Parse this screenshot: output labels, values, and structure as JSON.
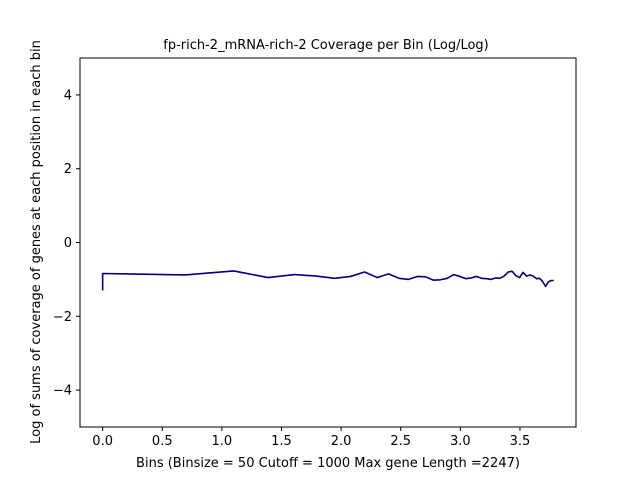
{
  "chart_data": {
    "type": "line",
    "title": "fp-rich-2_mRNA-rich-2 Coverage per Bin (Log/Log)",
    "xlabel": "Bins  (Binsize = 50 Cutoff = 1000 Max gene Length =2247)",
    "ylabel": "Log of sums of coverage of genes at each position in each bin",
    "xlim": [
      -0.19,
      3.97
    ],
    "ylim": [
      -5,
      5
    ],
    "xticks": [
      0.0,
      0.5,
      1.0,
      1.5,
      2.0,
      2.5,
      3.0,
      3.5
    ],
    "xtick_labels": [
      "0.0",
      "0.5",
      "1.0",
      "1.5",
      "2.0",
      "2.5",
      "3.0",
      "3.5"
    ],
    "yticks": [
      -4,
      -2,
      0,
      2,
      4
    ],
    "ytick_labels": [
      "−4",
      "−2",
      "0",
      "2",
      "4"
    ],
    "grid": false,
    "line_color": "#000080",
    "series": [
      {
        "x": [
          0.0,
          0.0,
          0.693,
          1.099,
          1.386,
          1.609,
          1.792,
          1.946,
          2.079,
          2.197,
          2.303,
          2.398,
          2.485,
          2.565,
          2.639,
          2.708,
          2.773,
          2.833,
          2.89,
          2.944,
          2.996,
          3.045,
          3.091,
          3.135,
          3.178,
          3.219,
          3.258,
          3.296,
          3.332,
          3.367,
          3.401,
          3.434,
          3.466,
          3.497,
          3.526,
          3.555,
          3.584,
          3.611,
          3.638,
          3.664,
          3.689,
          3.714,
          3.738,
          3.761,
          3.784
        ],
        "y": [
          -1.3,
          -0.84,
          -0.88,
          -0.77,
          -0.95,
          -0.87,
          -0.91,
          -0.97,
          -0.92,
          -0.8,
          -0.95,
          -0.85,
          -0.97,
          -1.0,
          -0.92,
          -0.93,
          -1.02,
          -1.01,
          -0.97,
          -0.87,
          -0.92,
          -0.98,
          -0.96,
          -0.92,
          -0.97,
          -0.98,
          -1.0,
          -0.96,
          -0.97,
          -0.91,
          -0.8,
          -0.78,
          -0.9,
          -0.95,
          -0.81,
          -0.91,
          -0.88,
          -0.91,
          -0.98,
          -0.97,
          -1.05,
          -1.19,
          -1.07,
          -1.03,
          -1.03
        ]
      }
    ]
  }
}
